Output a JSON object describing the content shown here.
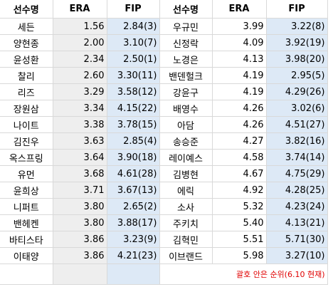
{
  "headers": [
    "선수명",
    "ERA",
    "FIP",
    "선수명",
    "ERA",
    "FIP"
  ],
  "rows": [
    [
      "세든",
      "1.56",
      "2.84(3)",
      "우규민",
      "3.99",
      "3.22(8)"
    ],
    [
      "양현종",
      "2.00",
      "3.10(7)",
      "신정락",
      "4.09",
      "3.92(19)"
    ],
    [
      "윤성환",
      "2.34",
      "2.50(1)",
      "노경은",
      "4.13",
      "3.98(20)"
    ],
    [
      "찰리",
      "2.60",
      "3.30(11)",
      "밴덴헐크",
      "4.19",
      "2.95(5)"
    ],
    [
      "리즈",
      "3.29",
      "3.58(12)",
      "강윤구",
      "4.19",
      "4.29(26)"
    ],
    [
      "장원삼",
      "3.34",
      "4.15(22)",
      "배영수",
      "4.26",
      "3.02(6)"
    ],
    [
      "나이트",
      "3.38",
      "3.78(15)",
      "아담",
      "4.26",
      "4.51(27)"
    ],
    [
      "김진우",
      "3.63",
      "2.85(4)",
      "송승준",
      "4.27",
      "3.82(16)"
    ],
    [
      "옥스프링",
      "3.64",
      "3.90(18)",
      "레이예스",
      "4.58",
      "3.74(14)"
    ],
    [
      "유먼",
      "3.68",
      "4.61(28)",
      "김병현",
      "4.67",
      "4.75(29)"
    ],
    [
      "윤희상",
      "3.71",
      "3.67(13)",
      "에릭",
      "4.92",
      "4.28(25)"
    ],
    [
      "니퍼트",
      "3.80",
      "2.65(2)",
      "소사",
      "5.32",
      "4.23(24)"
    ],
    [
      "밴헤켄",
      "3.80",
      "3.88(17)",
      "주키치",
      "5.40",
      "4.13(21)"
    ],
    [
      "바티스타",
      "3.86",
      "3.23(9)",
      "김혁민",
      "5.51",
      "5.71(30)"
    ],
    [
      "이태양",
      "3.86",
      "4.21(23)",
      "이브랜드",
      "5.98",
      "3.27(10)"
    ]
  ],
  "note": "괄호 안은 순위(6.10 현재)"
}
